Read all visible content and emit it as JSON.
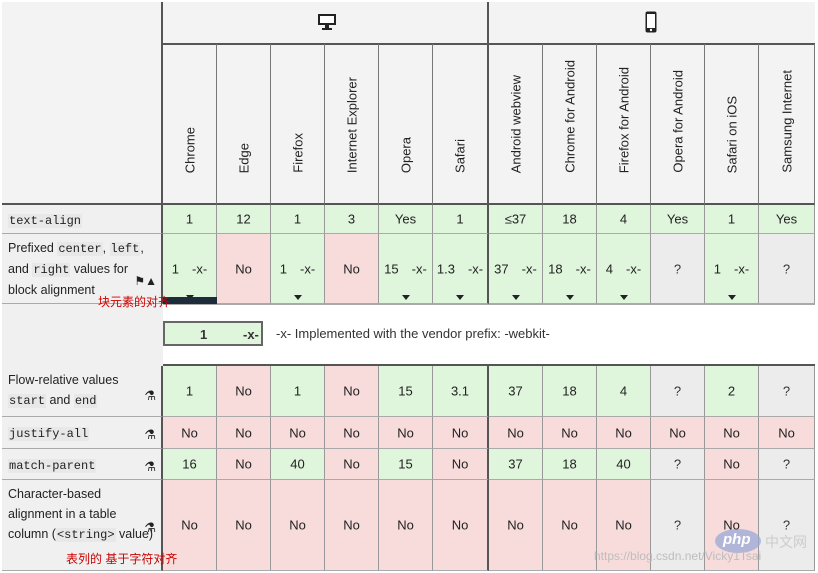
{
  "browsers": [
    {
      "label": "Chrome",
      "icon": "chrome-icon"
    },
    {
      "label": "Edge",
      "icon": "edge-icon"
    },
    {
      "label": "Firefox",
      "icon": "firefox-icon"
    },
    {
      "label": "Internet Explorer",
      "icon": "ie-icon"
    },
    {
      "label": "Opera",
      "icon": "opera-icon"
    },
    {
      "label": "Safari",
      "icon": "safari-icon"
    },
    {
      "label": "Android webview",
      "icon": "android-icon"
    },
    {
      "label": "Chrome for Android",
      "icon": "chrome-icon"
    },
    {
      "label": "Firefox for Android",
      "icon": "firefox-icon"
    },
    {
      "label": "Opera for Android",
      "icon": "opera-icon"
    },
    {
      "label": "Safari on iOS",
      "icon": "safari-icon"
    },
    {
      "label": "Samsung Internet",
      "icon": "samsung-icon"
    }
  ],
  "groups": [
    {
      "name": "desktop",
      "icon": "desktop-icon"
    },
    {
      "name": "mobile",
      "icon": "mobile-icon"
    }
  ],
  "rows": [
    {
      "feature_code": "text-align",
      "cells": [
        {
          "t": "sup",
          "v": "1"
        },
        {
          "t": "sup",
          "v": "12"
        },
        {
          "t": "sup",
          "v": "1"
        },
        {
          "t": "sup",
          "v": "3"
        },
        {
          "t": "sup",
          "v": "Yes"
        },
        {
          "t": "sup",
          "v": "1"
        },
        {
          "t": "sup",
          "v": "≤37"
        },
        {
          "t": "sup",
          "v": "18"
        },
        {
          "t": "sup",
          "v": "4"
        },
        {
          "t": "sup",
          "v": "Yes"
        },
        {
          "t": "sup",
          "v": "1"
        },
        {
          "t": "sup",
          "v": "Yes"
        }
      ]
    },
    {
      "feature_parts": [
        "Prefixed ",
        "center",
        ", ",
        "left",
        ",",
        "and ",
        "right",
        " values for block alignment"
      ],
      "cells": [
        {
          "t": "sup",
          "v": "1",
          "p": "-x-",
          "c": true
        },
        {
          "t": "no",
          "v": "No"
        },
        {
          "t": "sup",
          "v": "1",
          "p": "-x-",
          "c": true
        },
        {
          "t": "no",
          "v": "No"
        },
        {
          "t": "sup",
          "v": "15",
          "p": "-x-",
          "c": true
        },
        {
          "t": "sup",
          "v": "1.3",
          "p": "-x-",
          "c": true
        },
        {
          "t": "sup",
          "v": "37",
          "p": "-x-",
          "c": true
        },
        {
          "t": "sup",
          "v": "18",
          "p": "-x-",
          "c": true
        },
        {
          "t": "sup",
          "v": "4",
          "p": "-x-",
          "c": true
        },
        {
          "t": "unk",
          "v": "?"
        },
        {
          "t": "sup",
          "v": "1",
          "p": "-x-",
          "c": true
        },
        {
          "t": "unk",
          "v": "?"
        }
      ]
    },
    {
      "feature_parts": [
        "Flow-relative values",
        "start",
        " and ",
        "end"
      ],
      "cells": [
        {
          "t": "sup",
          "v": "1"
        },
        {
          "t": "no",
          "v": "No"
        },
        {
          "t": "sup",
          "v": "1"
        },
        {
          "t": "no",
          "v": "No"
        },
        {
          "t": "sup",
          "v": "15"
        },
        {
          "t": "sup",
          "v": "3.1"
        },
        {
          "t": "sup",
          "v": "37"
        },
        {
          "t": "sup",
          "v": "18"
        },
        {
          "t": "sup",
          "v": "4"
        },
        {
          "t": "unk",
          "v": "?"
        },
        {
          "t": "sup",
          "v": "2"
        },
        {
          "t": "unk",
          "v": "?"
        }
      ]
    },
    {
      "feature_code": "justify-all",
      "cells": [
        {
          "t": "no",
          "v": "No"
        },
        {
          "t": "no",
          "v": "No"
        },
        {
          "t": "no",
          "v": "No"
        },
        {
          "t": "no",
          "v": "No"
        },
        {
          "t": "no",
          "v": "No"
        },
        {
          "t": "no",
          "v": "No"
        },
        {
          "t": "no",
          "v": "No"
        },
        {
          "t": "no",
          "v": "No"
        },
        {
          "t": "no",
          "v": "No"
        },
        {
          "t": "no",
          "v": "No"
        },
        {
          "t": "no",
          "v": "No"
        },
        {
          "t": "no",
          "v": "No"
        }
      ]
    },
    {
      "feature_code": "match-parent",
      "cells": [
        {
          "t": "sup",
          "v": "16"
        },
        {
          "t": "no",
          "v": "No"
        },
        {
          "t": "sup",
          "v": "40"
        },
        {
          "t": "no",
          "v": "No"
        },
        {
          "t": "sup",
          "v": "15"
        },
        {
          "t": "no",
          "v": "No"
        },
        {
          "t": "sup",
          "v": "37"
        },
        {
          "t": "sup",
          "v": "18"
        },
        {
          "t": "sup",
          "v": "40"
        },
        {
          "t": "unk",
          "v": "?"
        },
        {
          "t": "no",
          "v": "No"
        },
        {
          "t": "unk",
          "v": "?"
        }
      ]
    },
    {
      "feature_parts": [
        "Character-based alignment in a table column (",
        "<string>",
        " value)"
      ],
      "cells": [
        {
          "t": "no",
          "v": "No"
        },
        {
          "t": "no",
          "v": "No"
        },
        {
          "t": "no",
          "v": "No"
        },
        {
          "t": "no",
          "v": "No"
        },
        {
          "t": "no",
          "v": "No"
        },
        {
          "t": "no",
          "v": "No"
        },
        {
          "t": "no",
          "v": "No"
        },
        {
          "t": "no",
          "v": "No"
        },
        {
          "t": "no",
          "v": "No"
        },
        {
          "t": "unk",
          "v": "?"
        },
        {
          "t": "no",
          "v": "No"
        },
        {
          "t": "unk",
          "v": "?"
        }
      ]
    }
  ],
  "legend": {
    "sample_value": "1",
    "sample_prefix": "-x-",
    "text": "-x- Implemented with the vendor prefix: -webkit-"
  },
  "annotations": {
    "block_align": "块元素的对齐",
    "table_align": "表列的  基于字符对齐"
  },
  "watermark": {
    "php": "php",
    "site": "中文网",
    "url": "https://blog.csdn.net/Vicky1Tsai"
  },
  "colors": {
    "supported": "#dff5dc",
    "unsupported": "#f8dcdc",
    "unknown": "#ececec",
    "annotation": "#cc0000"
  }
}
